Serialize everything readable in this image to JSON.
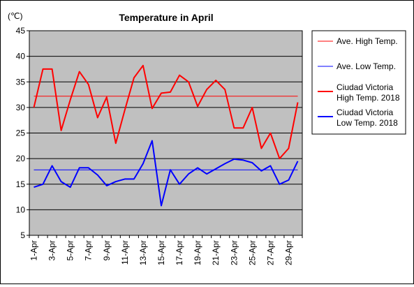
{
  "chart_data": {
    "type": "line",
    "title": "Temperature in April",
    "unit_label": "(℃)",
    "ylim": [
      5,
      45
    ],
    "yticks": [
      5,
      10,
      15,
      20,
      25,
      30,
      35,
      40,
      45
    ],
    "x": [
      "1-Apr",
      "2-Apr",
      "3-Apr",
      "4-Apr",
      "5-Apr",
      "6-Apr",
      "7-Apr",
      "8-Apr",
      "9-Apr",
      "10-Apr",
      "11-Apr",
      "12-Apr",
      "13-Apr",
      "14-Apr",
      "15-Apr",
      "16-Apr",
      "17-Apr",
      "18-Apr",
      "19-Apr",
      "20-Apr",
      "21-Apr",
      "22-Apr",
      "23-Apr",
      "24-Apr",
      "25-Apr",
      "26-Apr",
      "27-Apr",
      "28-Apr",
      "29-Apr",
      "30-Apr"
    ],
    "xtick_labels": [
      "1-Apr",
      "3-Apr",
      "5-Apr",
      "7-Apr",
      "9-Apr",
      "11-Apr",
      "13-Apr",
      "15-Apr",
      "17-Apr",
      "19-Apr",
      "21-Apr",
      "23-Apr",
      "25-Apr",
      "27-Apr",
      "29-Apr"
    ],
    "grid": true,
    "legend_position": "right",
    "series": [
      {
        "name": "Ave. High Temp.",
        "color": "#ff0000",
        "style": "thin",
        "values": [
          32.2,
          32.2,
          32.2,
          32.2,
          32.2,
          32.2,
          32.2,
          32.2,
          32.2,
          32.2,
          32.2,
          32.2,
          32.2,
          32.2,
          32.2,
          32.2,
          32.2,
          32.2,
          32.2,
          32.2,
          32.2,
          32.2,
          32.2,
          32.2,
          32.2,
          32.2,
          32.2,
          32.2,
          32.2,
          32.2
        ]
      },
      {
        "name": "Ave. Low Temp.",
        "color": "#0000ff",
        "style": "thin",
        "values": [
          17.8,
          17.8,
          17.8,
          17.8,
          17.8,
          17.8,
          17.8,
          17.8,
          17.8,
          17.8,
          17.8,
          17.8,
          17.8,
          17.8,
          17.8,
          17.8,
          17.8,
          17.8,
          17.8,
          17.8,
          17.8,
          17.8,
          17.8,
          17.8,
          17.8,
          17.8,
          17.8,
          17.8,
          17.8,
          17.8
        ]
      },
      {
        "name": "Ciudad Victoria High Temp. 2018",
        "legend_lines": [
          "Ciudad Victoria",
          "High Temp. 2018"
        ],
        "color": "#ff0000",
        "style": "thick",
        "values": [
          30,
          37.5,
          37.5,
          25.5,
          31.5,
          37,
          34.5,
          28,
          32,
          23,
          29.5,
          35.8,
          38.2,
          29.8,
          32.8,
          33,
          36.3,
          35,
          30.2,
          33.5,
          35.3,
          33.5,
          26,
          26,
          30,
          22,
          25,
          20,
          22,
          31
        ]
      },
      {
        "name": "Ciudad Victoria Low Temp. 2018",
        "legend_lines": [
          "Ciudad Victoria",
          "Low Temp. 2018"
        ],
        "color": "#0000ff",
        "style": "thick",
        "values": [
          14.4,
          15,
          18.6,
          15.5,
          14.4,
          18.2,
          18.2,
          16.8,
          14.7,
          15.5,
          16,
          16,
          19,
          23.5,
          10.8,
          17.8,
          15,
          17,
          18.2,
          17,
          18,
          19,
          19.9,
          19.7,
          19.2,
          17.6,
          18.6,
          15,
          15.8,
          19.5
        ]
      }
    ]
  }
}
